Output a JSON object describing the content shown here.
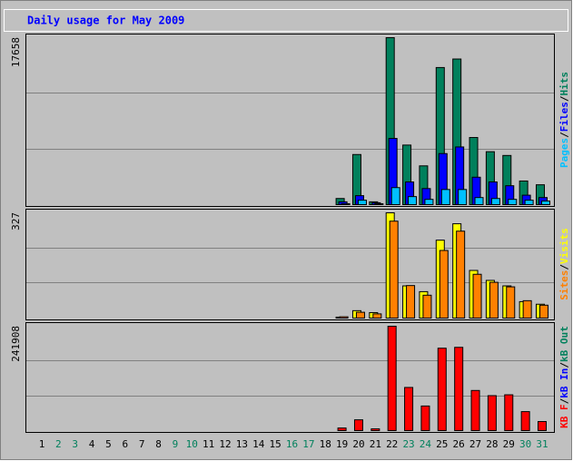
{
  "title": "Daily usage for May 2009",
  "separator": "/",
  "categories": [
    "1",
    "2",
    "3",
    "4",
    "5",
    "6",
    "7",
    "8",
    "9",
    "10",
    "11",
    "12",
    "13",
    "14",
    "15",
    "16",
    "17",
    "18",
    "19",
    "20",
    "21",
    "22",
    "23",
    "24",
    "25",
    "26",
    "27",
    "28",
    "29",
    "30",
    "31"
  ],
  "category_colors": [
    "#000000",
    "#00805c",
    "#00805c",
    "#000000",
    "#000000",
    "#000000",
    "#000000",
    "#000000",
    "#00805c",
    "#00805c",
    "#000000",
    "#000000",
    "#000000",
    "#000000",
    "#000000",
    "#00805c",
    "#00805c",
    "#000000",
    "#000000",
    "#000000",
    "#000000",
    "#000000",
    "#00805c",
    "#00805c",
    "#000000",
    "#000000",
    "#000000",
    "#000000",
    "#000000",
    "#00805c",
    "#00805c"
  ],
  "chart_data": [
    {
      "type": "bar",
      "ylim": [
        0,
        17658
      ],
      "yticks": [
        17658
      ],
      "series": [
        {
          "name": "Pages",
          "color": "#00c0ff",
          "values": [
            0,
            0,
            0,
            0,
            0,
            0,
            0,
            0,
            0,
            0,
            0,
            0,
            0,
            0,
            0,
            0,
            0,
            0,
            100,
            470,
            100,
            1800,
            850,
            560,
            1600,
            1600,
            750,
            650,
            560,
            470,
            380
          ]
        },
        {
          "name": "Files",
          "color": "#0000ff",
          "values": [
            0,
            0,
            0,
            0,
            0,
            0,
            0,
            0,
            0,
            0,
            0,
            0,
            0,
            0,
            0,
            0,
            0,
            0,
            300,
            950,
            200,
            7000,
            2400,
            1700,
            5400,
            6100,
            2900,
            2400,
            2000,
            1000,
            750
          ]
        },
        {
          "name": "Hits",
          "color": "#00805c",
          "values": [
            0,
            0,
            0,
            0,
            0,
            0,
            0,
            0,
            0,
            0,
            0,
            0,
            0,
            0,
            0,
            0,
            0,
            0,
            650,
            5300,
            300,
            17658,
            6300,
            4100,
            14500,
            15400,
            7100,
            5600,
            5200,
            2500,
            2100
          ]
        }
      ]
    },
    {
      "type": "bar",
      "ylim": [
        0,
        327
      ],
      "yticks": [
        327
      ],
      "series": [
        {
          "name": "Sites",
          "color": "#ff8000",
          "values": [
            0,
            0,
            0,
            0,
            0,
            0,
            0,
            0,
            0,
            0,
            0,
            0,
            0,
            0,
            0,
            0,
            0,
            0,
            4,
            18,
            13,
            301,
            101,
            71,
            210,
            270,
            136,
            111,
            97,
            54,
            40
          ]
        },
        {
          "name": "Visits",
          "color": "#ffff00",
          "values": [
            0,
            0,
            0,
            0,
            0,
            0,
            0,
            0,
            0,
            0,
            0,
            0,
            0,
            0,
            0,
            0,
            0,
            0,
            3,
            23,
            17,
            327,
            100,
            82,
            242,
            293,
            148,
            117,
            100,
            51,
            43
          ]
        }
      ]
    },
    {
      "type": "bar",
      "ylim": [
        0,
        241908
      ],
      "yticks": [
        241908
      ],
      "series": [
        {
          "name": "KB F",
          "color": "#ff0000",
          "values": [
            0,
            0,
            0,
            0,
            0,
            0,
            0,
            0,
            0,
            0,
            0,
            0,
            0,
            0,
            0,
            0,
            0,
            0,
            6000,
            25000,
            4000,
            241908,
            100000,
            57000,
            191000,
            193000,
            93000,
            81000,
            83000,
            44000,
            21000
          ]
        },
        {
          "name": "kB In",
          "color": "#0000ff",
          "values": [
            0,
            0,
            0,
            0,
            0,
            0,
            0,
            0,
            0,
            0,
            0,
            0,
            0,
            0,
            0,
            0,
            0,
            0,
            0,
            0,
            0,
            0,
            0,
            0,
            0,
            0,
            0,
            0,
            0,
            0,
            0
          ]
        },
        {
          "name": "kB Out",
          "color": "#00805c",
          "values": [
            0,
            0,
            0,
            0,
            0,
            0,
            0,
            0,
            0,
            0,
            0,
            0,
            0,
            0,
            0,
            0,
            0,
            0,
            0,
            0,
            0,
            0,
            0,
            0,
            0,
            0,
            0,
            0,
            0,
            0,
            0
          ]
        }
      ]
    }
  ]
}
